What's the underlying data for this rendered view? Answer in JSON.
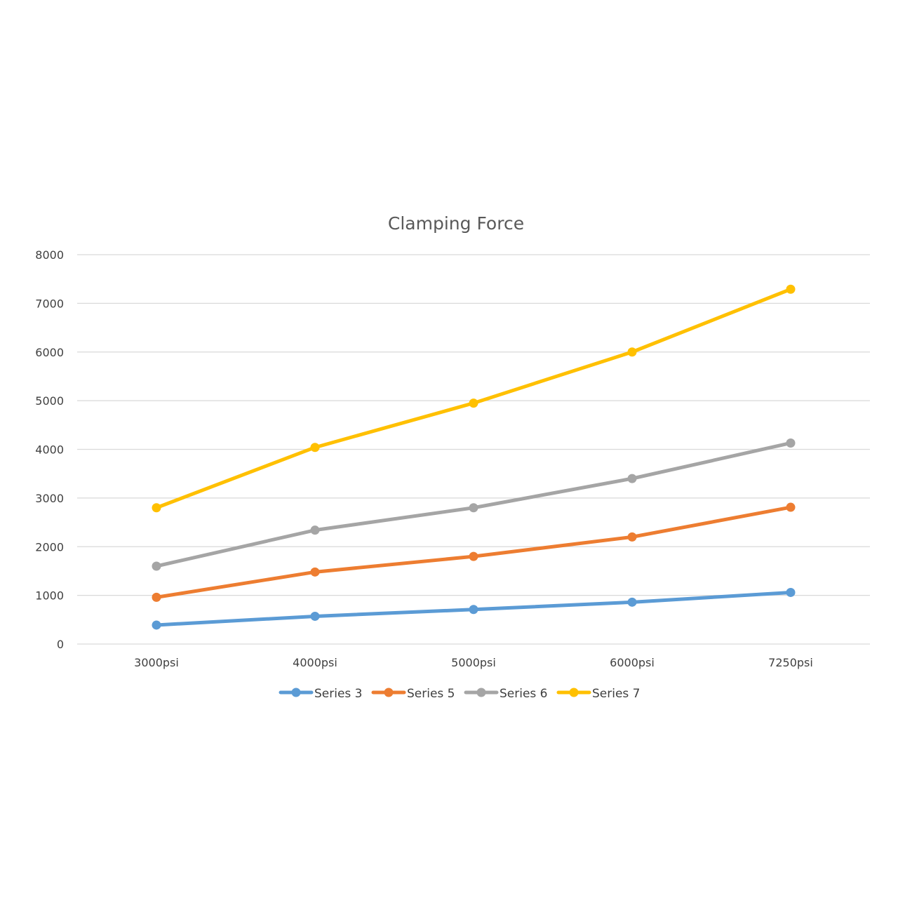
{
  "chart_data": {
    "type": "line",
    "title": "Clamping Force",
    "xlabel": "",
    "ylabel": "",
    "categories": [
      "3000psi",
      "4000psi",
      "5000psi",
      "6000psi",
      "7250psi"
    ],
    "ylim": [
      0,
      8000
    ],
    "yticks": [
      0,
      1000,
      2000,
      3000,
      4000,
      5000,
      6000,
      7000,
      8000
    ],
    "grid": true,
    "legend_position": "bottom",
    "series": [
      {
        "name": "Series 3",
        "color": "#5B9BD5",
        "values": [
          390,
          570,
          710,
          860,
          1060
        ]
      },
      {
        "name": "Series 5",
        "color": "#ED7D31",
        "values": [
          960,
          1480,
          1800,
          2200,
          2810
        ]
      },
      {
        "name": "Series 6",
        "color": "#A5A5A5",
        "values": [
          1600,
          2340,
          2800,
          3400,
          4130
        ]
      },
      {
        "name": "Series 7",
        "color": "#FFC000",
        "values": [
          2800,
          4040,
          4950,
          6000,
          7290
        ]
      }
    ]
  }
}
